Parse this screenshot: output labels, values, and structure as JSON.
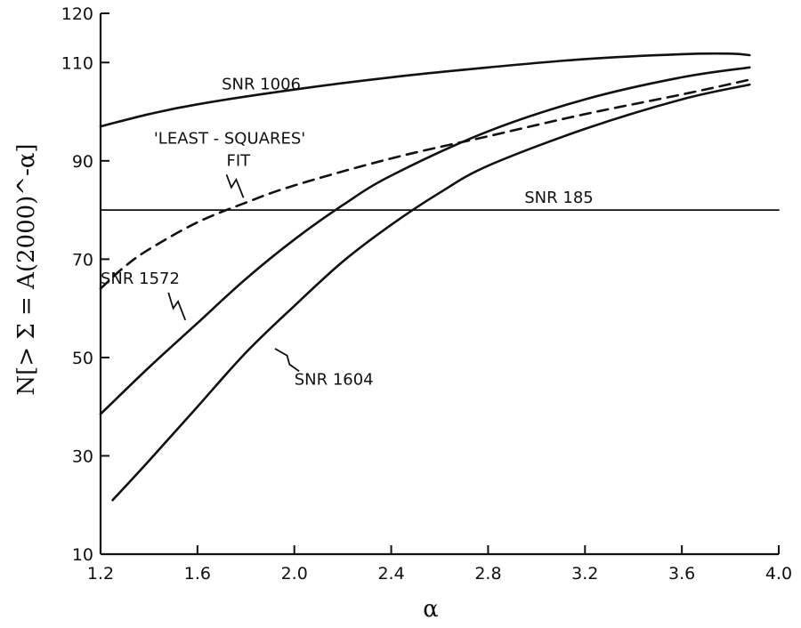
{
  "chart_data": {
    "type": "line",
    "title": "",
    "xlabel": "α",
    "ylabel": "N[> Σ = A(2000)^-α]",
    "xlim": [
      1.2,
      4.0
    ],
    "ylim": [
      10,
      120
    ],
    "x_ticks": [
      1.2,
      1.6,
      2.0,
      2.4,
      2.8,
      3.2,
      3.6,
      4.0
    ],
    "x_tick_labels": [
      "1.2",
      "1.6",
      "2.0",
      "2.4",
      "2.8",
      "3.2",
      "3.6",
      "4.0"
    ],
    "y_ticks": [
      10,
      30,
      50,
      70,
      90,
      110,
      120
    ],
    "y_tick_labels": [
      "10",
      "30",
      "50",
      "70",
      "90",
      "110",
      "120"
    ],
    "grid": false,
    "series": [
      {
        "name": "SNR 1006",
        "style": "solid",
        "x": [
          1.2,
          1.4,
          1.6,
          2.0,
          2.4,
          2.8,
          3.2,
          3.6,
          3.8,
          3.88
        ],
        "y": [
          97.0,
          99.5,
          101.5,
          104.5,
          107.0,
          109.0,
          110.7,
          111.7,
          111.8,
          111.5
        ]
      },
      {
        "name": "'LEAST - SQUARES' FIT",
        "style": "dashed",
        "x": [
          1.2,
          1.3,
          1.4,
          1.6,
          1.8,
          2.0,
          2.4,
          2.8,
          3.2,
          3.6,
          3.88
        ],
        "y": [
          64.0,
          68.5,
          72.0,
          77.5,
          81.5,
          85.0,
          90.5,
          95.0,
          99.5,
          103.5,
          106.5
        ]
      },
      {
        "name": "SNR 185",
        "style": "thin",
        "x": [
          1.2,
          4.0
        ],
        "y": [
          80.0,
          80.0
        ]
      },
      {
        "name": "SNR 1572",
        "style": "solid",
        "x": [
          1.2,
          1.4,
          1.6,
          1.8,
          2.0,
          2.2,
          2.4,
          2.8,
          3.2,
          3.6,
          3.88
        ],
        "y": [
          38.5,
          48.0,
          57.0,
          66.0,
          74.0,
          81.0,
          87.0,
          96.0,
          102.5,
          107.0,
          109.0
        ]
      },
      {
        "name": "SNR 1604",
        "style": "solid",
        "x": [
          1.25,
          1.4,
          1.6,
          1.8,
          2.0,
          2.2,
          2.4,
          2.6,
          2.8,
          3.2,
          3.6,
          3.88
        ],
        "y": [
          21.0,
          29.0,
          40.0,
          51.0,
          60.5,
          69.5,
          77.0,
          83.5,
          89.0,
          96.5,
          102.5,
          105.5
        ]
      }
    ],
    "annotations": [
      {
        "text": "SNR 1006",
        "x": 1.7,
        "y": 104.5
      },
      {
        "text": "'LEAST - SQUARES'",
        "x": 1.42,
        "y": 93.5
      },
      {
        "text": "FIT",
        "x": 1.72,
        "y": 89.0
      },
      {
        "text": "SNR 185",
        "x": 2.95,
        "y": 81.5
      },
      {
        "text": "SNR 1572",
        "x": 1.2,
        "y": 65.0
      },
      {
        "text": "SNR 1604",
        "x": 2.0,
        "y": 44.5
      }
    ]
  }
}
